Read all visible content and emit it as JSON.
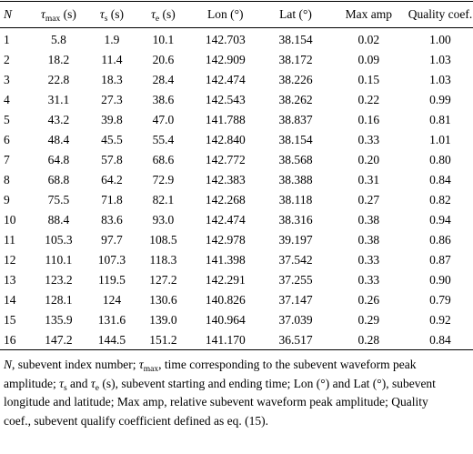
{
  "table": {
    "headers": {
      "n": "N",
      "tmax": {
        "sym": "τ",
        "sub": "max",
        "unit": " (s)"
      },
      "ts": {
        "sym": "τ",
        "sub": "s",
        "unit": " (s)"
      },
      "te": {
        "sym": "τ",
        "sub": "e",
        "unit": " (s)"
      },
      "lon": "Lon (°)",
      "lat": "Lat (°)",
      "amp": "Max amp",
      "q": "Quality coef."
    },
    "rows": [
      [
        "1",
        "5.8",
        "1.9",
        "10.1",
        "142.703",
        "38.154",
        "0.02",
        "1.00"
      ],
      [
        "2",
        "18.2",
        "11.4",
        "20.6",
        "142.909",
        "38.172",
        "0.09",
        "1.03"
      ],
      [
        "3",
        "22.8",
        "18.3",
        "28.4",
        "142.474",
        "38.226",
        "0.15",
        "1.03"
      ],
      [
        "4",
        "31.1",
        "27.3",
        "38.6",
        "142.543",
        "38.262",
        "0.22",
        "0.99"
      ],
      [
        "5",
        "43.2",
        "39.8",
        "47.0",
        "141.788",
        "38.837",
        "0.16",
        "0.81"
      ],
      [
        "6",
        "48.4",
        "45.5",
        "55.4",
        "142.840",
        "38.154",
        "0.33",
        "1.01"
      ],
      [
        "7",
        "64.8",
        "57.8",
        "68.6",
        "142.772",
        "38.568",
        "0.20",
        "0.80"
      ],
      [
        "8",
        "68.8",
        "64.2",
        "72.9",
        "142.383",
        "38.388",
        "0.31",
        "0.84"
      ],
      [
        "9",
        "75.5",
        "71.8",
        "82.1",
        "142.268",
        "38.118",
        "0.27",
        "0.82"
      ],
      [
        "10",
        "88.4",
        "83.6",
        "93.0",
        "142.474",
        "38.316",
        "0.38",
        "0.94"
      ],
      [
        "11",
        "105.3",
        "97.7",
        "108.5",
        "142.978",
        "39.197",
        "0.38",
        "0.86"
      ],
      [
        "12",
        "110.1",
        "107.3",
        "118.3",
        "141.398",
        "37.542",
        "0.33",
        "0.87"
      ],
      [
        "13",
        "123.2",
        "119.5",
        "127.2",
        "142.291",
        "37.255",
        "0.33",
        "0.90"
      ],
      [
        "14",
        "128.1",
        "124",
        "130.6",
        "140.826",
        "37.147",
        "0.26",
        "0.79"
      ],
      [
        "15",
        "135.9",
        "131.6",
        "139.0",
        "140.964",
        "37.039",
        "0.29",
        "0.92"
      ],
      [
        "16",
        "147.2",
        "144.5",
        "151.2",
        "141.170",
        "36.517",
        "0.28",
        "0.84"
      ]
    ]
  },
  "footnote": {
    "n": "N",
    "p1": ", subevent index number; ",
    "tmax_sym": "τ",
    "tmax_sub": "max",
    "p2": ", time corresponding to the subevent waveform peak amplitude; ",
    "ts_sym": "τ",
    "ts_sub": "s",
    "and": " and ",
    "te_sym": "τ",
    "te_sub": "e",
    "p3": " (s), subevent starting and ending time; Lon (°) and Lat (°), subevent longitude and latitude; Max amp, relative subevent waveform peak amplitude; Quality coef., subevent qualify coefficient defined as eq. (15)."
  }
}
